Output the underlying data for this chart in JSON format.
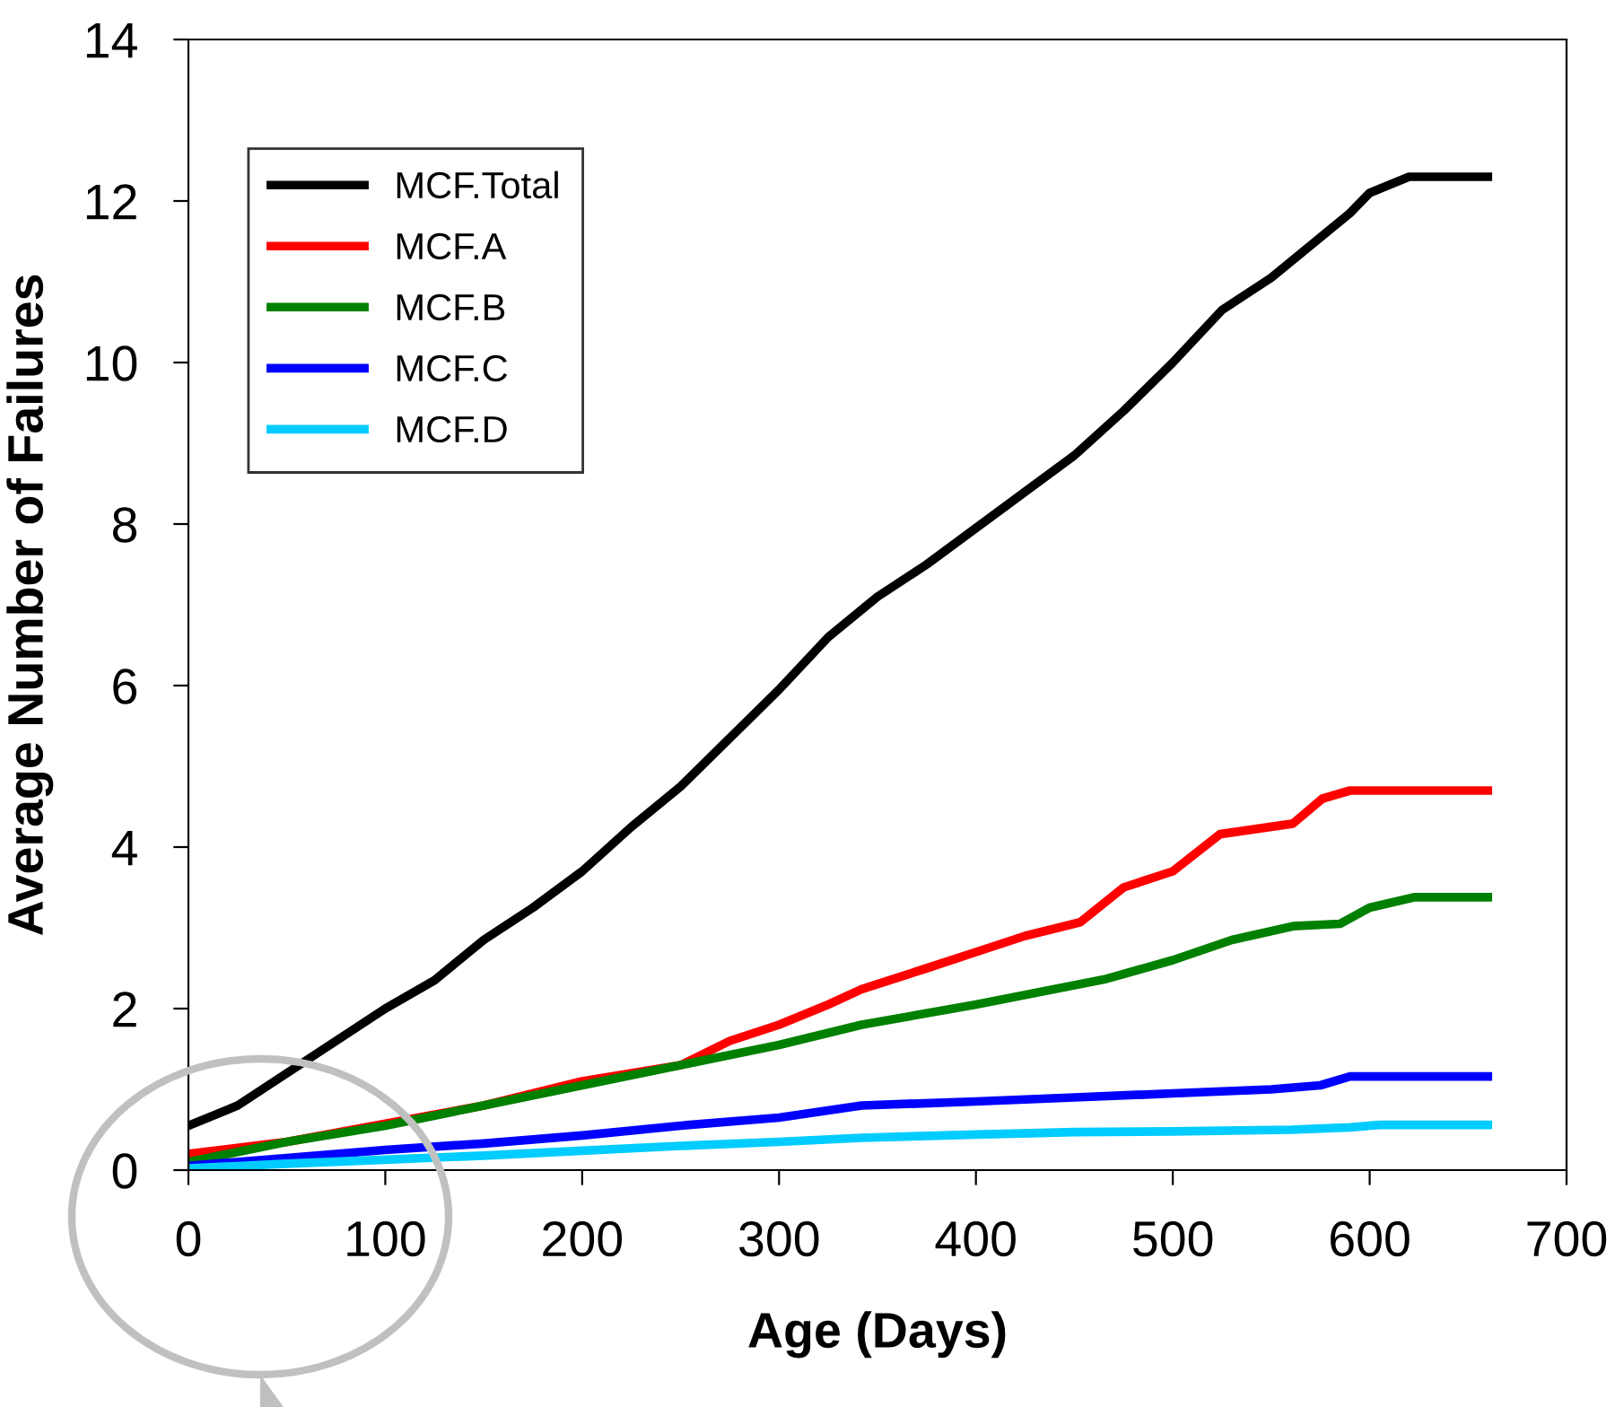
{
  "chart_data": {
    "type": "line",
    "xlabel": "Age (Days)",
    "ylabel": "Average Number of Failures",
    "xlim": [
      0,
      700
    ],
    "xticks": [
      0,
      100,
      200,
      300,
      400,
      500,
      600,
      700
    ],
    "ylim": [
      0,
      14
    ],
    "yticks": [
      0,
      2,
      4,
      6,
      8,
      10,
      12,
      14
    ],
    "grid": false,
    "legend": "top left",
    "marker": "none",
    "line_style": "solid",
    "series": [
      {
        "name": "MCF.Total",
        "color": "#000000",
        "x": [
          0,
          25,
          50,
          75,
          100,
          125,
          150,
          175,
          200,
          225,
          250,
          275,
          300,
          325,
          350,
          375,
          400,
          425,
          450,
          475,
          500,
          525,
          550,
          575,
          590,
          600,
          620,
          660
        ],
        "values": [
          0.55,
          0.8,
          1.2,
          1.6,
          2.0,
          2.35,
          2.85,
          3.25,
          3.7,
          4.25,
          4.75,
          5.35,
          5.95,
          6.6,
          7.1,
          7.5,
          7.95,
          8.4,
          8.85,
          9.4,
          10.0,
          10.65,
          11.05,
          11.55,
          11.85,
          12.1,
          12.3,
          12.3
        ]
      },
      {
        "name": "MCF.A",
        "color": "#ff0000",
        "x": [
          0,
          50,
          150,
          175,
          200,
          225,
          250,
          275,
          300,
          325,
          342,
          375,
          400,
          425,
          453,
          475,
          500,
          524,
          561,
          576,
          590,
          660
        ],
        "values": [
          0.2,
          0.35,
          0.8,
          0.95,
          1.1,
          1.2,
          1.3,
          1.6,
          1.8,
          2.05,
          2.24,
          2.5,
          2.7,
          2.9,
          3.07,
          3.5,
          3.7,
          4.16,
          4.29,
          4.6,
          4.7,
          4.7
        ]
      },
      {
        "name": "MCF.B",
        "color": "#008000",
        "x": [
          0,
          50,
          100,
          150,
          200,
          250,
          300,
          342,
          400,
          465,
          500,
          530,
          561,
          585,
          600,
          623,
          660
        ],
        "values": [
          0.1,
          0.35,
          0.55,
          0.8,
          1.05,
          1.3,
          1.55,
          1.8,
          2.05,
          2.36,
          2.6,
          2.85,
          3.02,
          3.05,
          3.25,
          3.38,
          3.38
        ]
      },
      {
        "name": "MCF.C",
        "color": "#0000ff",
        "x": [
          0,
          50,
          100,
          150,
          200,
          250,
          300,
          342,
          400,
          450,
          500,
          550,
          575,
          590,
          660
        ],
        "values": [
          0.05,
          0.15,
          0.25,
          0.33,
          0.43,
          0.55,
          0.65,
          0.8,
          0.85,
          0.9,
          0.95,
          1.0,
          1.05,
          1.16,
          1.16
        ]
      },
      {
        "name": "MCF.D",
        "color": "#00ccff",
        "x": [
          0,
          50,
          100,
          150,
          200,
          250,
          300,
          342,
          400,
          450,
          500,
          560,
          590,
          605,
          660
        ],
        "values": [
          0.02,
          0.08,
          0.13,
          0.18,
          0.24,
          0.3,
          0.35,
          0.4,
          0.44,
          0.47,
          0.48,
          0.5,
          0.53,
          0.56,
          0.56
        ]
      }
    ]
  }
}
